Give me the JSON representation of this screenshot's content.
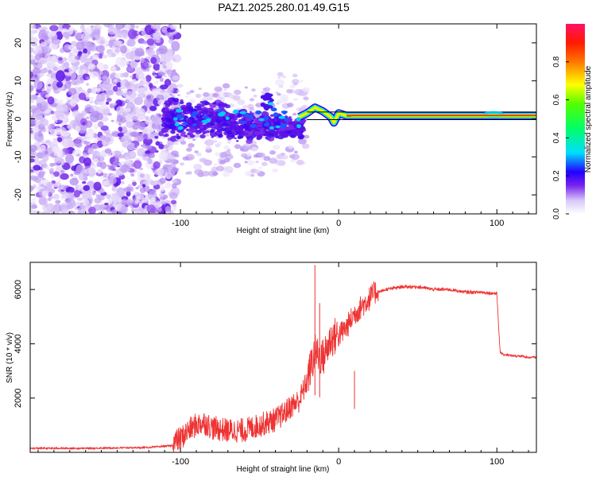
{
  "title": "PAZ1.2025.280.01.49.G15",
  "chart_data": [
    {
      "type": "heatmap",
      "name": "spectrogram",
      "xlabel": "Height of straight line (km)",
      "ylabel": "Frequency (Hz)",
      "xlim": [
        -195,
        125
      ],
      "ylim": [
        -25,
        25
      ],
      "xticks": [
        -100,
        0,
        100
      ],
      "yticks": [
        20,
        10,
        0,
        -10,
        -20
      ],
      "colorbar": {
        "label": "Normalized spectral amplitude",
        "range": [
          0,
          1
        ],
        "ticks": [
          0.0,
          0.2,
          0.4,
          0.6,
          0.8
        ]
      },
      "center_band": [
        {
          "x": -25,
          "y": 0.5
        },
        {
          "x": -20,
          "y": 1.5
        },
        {
          "x": -15,
          "y": 3.0
        },
        {
          "x": -10,
          "y": 2.0
        },
        {
          "x": -5,
          "y": 0.5
        },
        {
          "x": -3,
          "y": -1.0
        },
        {
          "x": 0,
          "y": 1.5
        },
        {
          "x": 5,
          "y": 0.8
        },
        {
          "x": 10,
          "y": 0.8
        },
        {
          "x": 125,
          "y": 0.8
        }
      ],
      "strong_band_start": -20
    },
    {
      "type": "line",
      "name": "snr",
      "xlabel": "Height of straight line (km)",
      "ylabel": "SNR (10 * v/v)",
      "xlim": [
        -195,
        125
      ],
      "ylim": [
        0,
        7000
      ],
      "xticks": [
        -100,
        0,
        100
      ],
      "yticks": [
        2000,
        4000,
        6000
      ],
      "color": "#ee3333",
      "series": [
        {
          "name": "SNR",
          "x": [
            -195,
            -160,
            -120,
            -105,
            -100,
            -95,
            -90,
            -85,
            -80,
            -70,
            -60,
            -50,
            -40,
            -35,
            -30,
            -25,
            -20,
            -15,
            -10,
            -5,
            0,
            5,
            10,
            15,
            20,
            25,
            30,
            40,
            50,
            60,
            70,
            80,
            90,
            100,
            102,
            104,
            106,
            110,
            115,
            120,
            125
          ],
          "y": [
            150,
            150,
            180,
            250,
            400,
            700,
            900,
            1000,
            800,
            700,
            700,
            900,
            1100,
            1300,
            1600,
            1800,
            2500,
            3500,
            3300,
            4000,
            4200,
            4500,
            5000,
            5300,
            5600,
            5900,
            6000,
            6100,
            6100,
            6000,
            6000,
            5900,
            5900,
            5850,
            3700,
            3600,
            3600,
            3550,
            3550,
            3500,
            3500
          ]
        }
      ],
      "spikes": [
        {
          "x": -15,
          "y": 6900
        },
        {
          "x": -12,
          "y": 5500
        },
        {
          "x": 10,
          "y": 1600
        }
      ]
    }
  ]
}
